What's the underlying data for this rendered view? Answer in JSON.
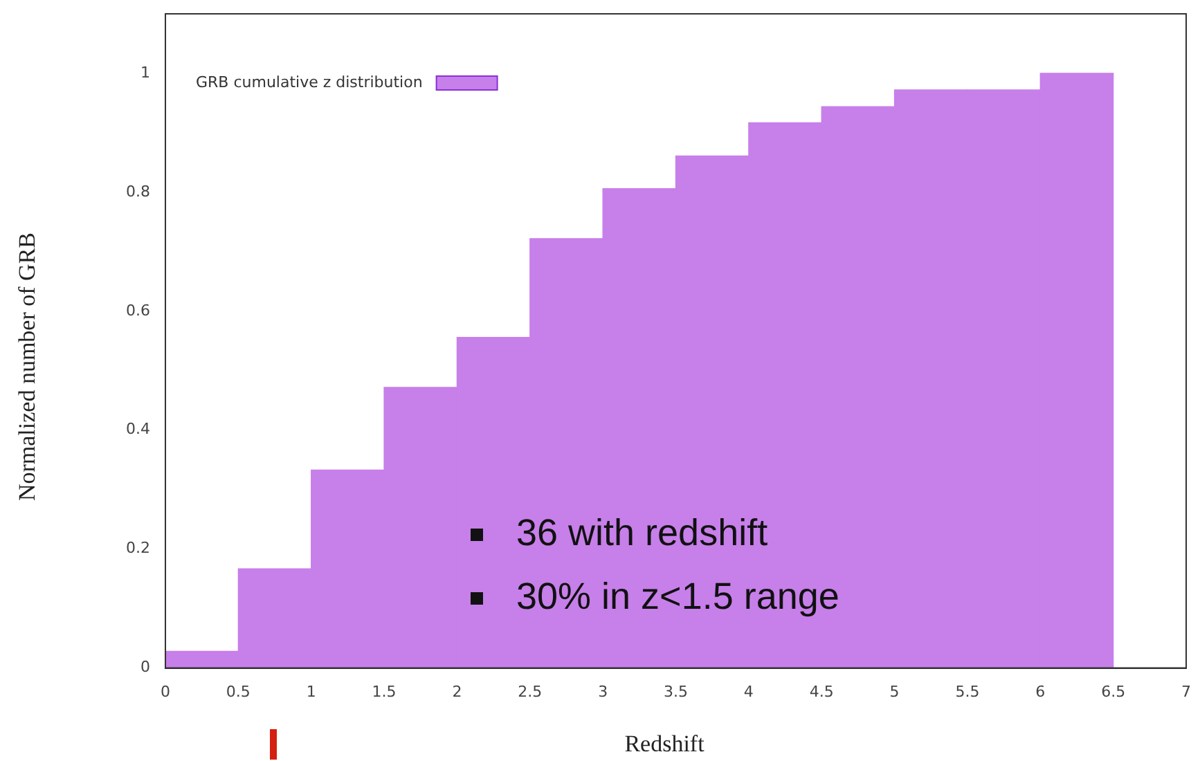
{
  "chart_data": {
    "type": "histogram",
    "xlabel": "Redshift",
    "ylabel": "Normalized number of GRB",
    "bins": [
      0,
      0.5,
      1,
      1.5,
      2,
      2.5,
      3,
      3.5,
      4,
      4.5,
      5,
      5.5,
      6,
      6.5
    ],
    "series": [
      {
        "name": "GRB cumulative z distribution",
        "color": "#c77fea",
        "values": [
          0.028,
          0.167,
          0.333,
          0.472,
          0.556,
          0.722,
          0.806,
          0.861,
          0.917,
          0.944,
          0.972,
          0.972,
          1.0
        ]
      }
    ],
    "xlim": [
      0,
      7
    ],
    "xticks": [
      0,
      0.5,
      1,
      1.5,
      2,
      2.5,
      3,
      3.5,
      4,
      4.5,
      5,
      5.5,
      6,
      6.5,
      7
    ],
    "ylim": [
      0,
      1.1
    ],
    "yticks": [
      0,
      0.2,
      0.4,
      0.6,
      0.8,
      1
    ],
    "legend": "top left",
    "grid": false,
    "annotations": [
      "36 with redshift",
      "30% in z<1.5 range"
    ]
  }
}
